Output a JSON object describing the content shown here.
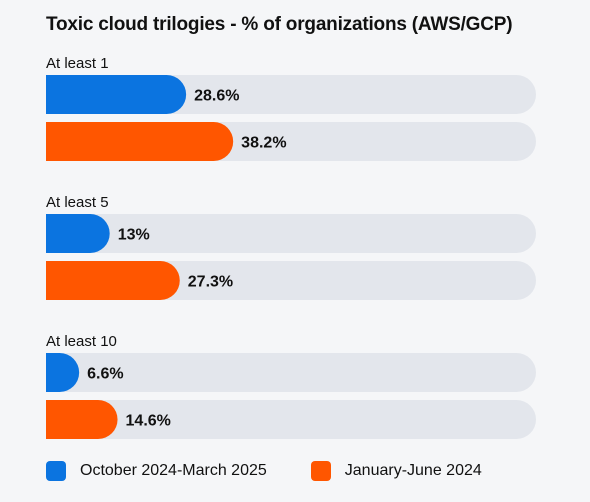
{
  "chart_data": {
    "type": "bar",
    "orientation": "horizontal",
    "title": "Toxic cloud trilogies - % of organizations (AWS/GCP)",
    "categories": [
      "At least 1",
      "At least 5",
      "At least 10"
    ],
    "series": [
      {
        "name": "October 2024-March 2025",
        "color": "#0b74e0",
        "values": [
          28.6,
          13,
          6.6
        ],
        "labels": [
          "28.6%",
          "13%",
          "6.6%"
        ]
      },
      {
        "name": "January-June 2024",
        "color": "#ff5600",
        "values": [
          38.2,
          27.3,
          14.6
        ],
        "labels": [
          "38.2%",
          "27.3%",
          "14.6%"
        ]
      }
    ],
    "xlim": [
      0,
      100
    ],
    "track_color": "#e3e6ec",
    "legend": "bottom-left",
    "grid": false
  }
}
